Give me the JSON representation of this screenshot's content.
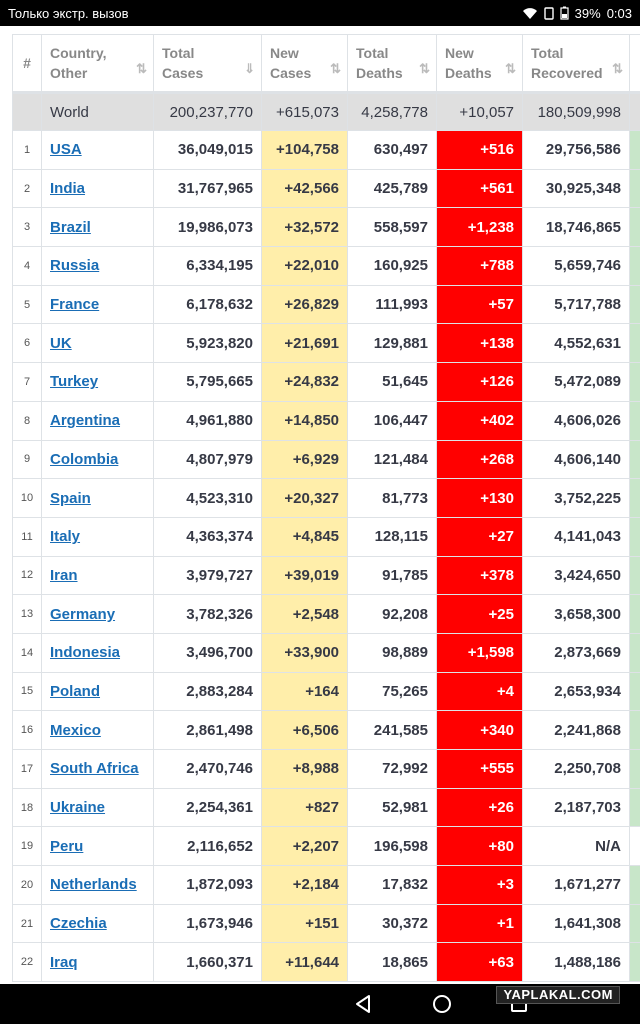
{
  "status_bar": {
    "carrier_text": "Только экстр. вызов",
    "battery": "39%",
    "time": "0:03"
  },
  "table": {
    "headers": {
      "rank": "#",
      "country": "Country,\nOther",
      "total_cases": "Total\nCases",
      "new_cases": "New\nCases",
      "total_deaths": "Total\nDeaths",
      "new_deaths": "New\nDeaths",
      "total_recovered": "Total\nRecovered"
    },
    "world": {
      "country": "World",
      "total_cases": "200,237,770",
      "new_cases": "+615,073",
      "total_deaths": "4,258,778",
      "new_deaths": "+10,057",
      "total_recovered": "180,509,998"
    },
    "rows": [
      {
        "rank": "1",
        "country": "USA",
        "total_cases": "36,049,015",
        "new_cases": "+104,758",
        "total_deaths": "630,497",
        "new_deaths": "+516",
        "total_recovered": "29,756,586"
      },
      {
        "rank": "2",
        "country": "India",
        "total_cases": "31,767,965",
        "new_cases": "+42,566",
        "total_deaths": "425,789",
        "new_deaths": "+561",
        "total_recovered": "30,925,348"
      },
      {
        "rank": "3",
        "country": "Brazil",
        "total_cases": "19,986,073",
        "new_cases": "+32,572",
        "total_deaths": "558,597",
        "new_deaths": "+1,238",
        "total_recovered": "18,746,865"
      },
      {
        "rank": "4",
        "country": "Russia",
        "total_cases": "6,334,195",
        "new_cases": "+22,010",
        "total_deaths": "160,925",
        "new_deaths": "+788",
        "total_recovered": "5,659,746"
      },
      {
        "rank": "5",
        "country": "France",
        "total_cases": "6,178,632",
        "new_cases": "+26,829",
        "total_deaths": "111,993",
        "new_deaths": "+57",
        "total_recovered": "5,717,788"
      },
      {
        "rank": "6",
        "country": "UK",
        "total_cases": "5,923,820",
        "new_cases": "+21,691",
        "total_deaths": "129,881",
        "new_deaths": "+138",
        "total_recovered": "4,552,631"
      },
      {
        "rank": "7",
        "country": "Turkey",
        "total_cases": "5,795,665",
        "new_cases": "+24,832",
        "total_deaths": "51,645",
        "new_deaths": "+126",
        "total_recovered": "5,472,089"
      },
      {
        "rank": "8",
        "country": "Argentina",
        "total_cases": "4,961,880",
        "new_cases": "+14,850",
        "total_deaths": "106,447",
        "new_deaths": "+402",
        "total_recovered": "4,606,026"
      },
      {
        "rank": "9",
        "country": "Colombia",
        "total_cases": "4,807,979",
        "new_cases": "+6,929",
        "total_deaths": "121,484",
        "new_deaths": "+268",
        "total_recovered": "4,606,140"
      },
      {
        "rank": "10",
        "country": "Spain",
        "total_cases": "4,523,310",
        "new_cases": "+20,327",
        "total_deaths": "81,773",
        "new_deaths": "+130",
        "total_recovered": "3,752,225"
      },
      {
        "rank": "11",
        "country": "Italy",
        "total_cases": "4,363,374",
        "new_cases": "+4,845",
        "total_deaths": "128,115",
        "new_deaths": "+27",
        "total_recovered": "4,141,043"
      },
      {
        "rank": "12",
        "country": "Iran",
        "total_cases": "3,979,727",
        "new_cases": "+39,019",
        "total_deaths": "91,785",
        "new_deaths": "+378",
        "total_recovered": "3,424,650"
      },
      {
        "rank": "13",
        "country": "Germany",
        "total_cases": "3,782,326",
        "new_cases": "+2,548",
        "total_deaths": "92,208",
        "new_deaths": "+25",
        "total_recovered": "3,658,300"
      },
      {
        "rank": "14",
        "country": "Indonesia",
        "total_cases": "3,496,700",
        "new_cases": "+33,900",
        "total_deaths": "98,889",
        "new_deaths": "+1,598",
        "total_recovered": "2,873,669"
      },
      {
        "rank": "15",
        "country": "Poland",
        "total_cases": "2,883,284",
        "new_cases": "+164",
        "total_deaths": "75,265",
        "new_deaths": "+4",
        "total_recovered": "2,653,934"
      },
      {
        "rank": "16",
        "country": "Mexico",
        "total_cases": "2,861,498",
        "new_cases": "+6,506",
        "total_deaths": "241,585",
        "new_deaths": "+340",
        "total_recovered": "2,241,868"
      },
      {
        "rank": "17",
        "country": "South Africa",
        "total_cases": "2,470,746",
        "new_cases": "+8,988",
        "total_deaths": "72,992",
        "new_deaths": "+555",
        "total_recovered": "2,250,708"
      },
      {
        "rank": "18",
        "country": "Ukraine",
        "total_cases": "2,254,361",
        "new_cases": "+827",
        "total_deaths": "52,981",
        "new_deaths": "+26",
        "total_recovered": "2,187,703"
      },
      {
        "rank": "19",
        "country": "Peru",
        "total_cases": "2,116,652",
        "new_cases": "+2,207",
        "total_deaths": "196,598",
        "new_deaths": "+80",
        "total_recovered": "N/A"
      },
      {
        "rank": "20",
        "country": "Netherlands",
        "total_cases": "1,872,093",
        "new_cases": "+2,184",
        "total_deaths": "17,832",
        "new_deaths": "+3",
        "total_recovered": "1,671,277"
      },
      {
        "rank": "21",
        "country": "Czechia",
        "total_cases": "1,673,946",
        "new_cases": "+151",
        "total_deaths": "30,372",
        "new_deaths": "+1",
        "total_recovered": "1,641,308"
      },
      {
        "rank": "22",
        "country": "Iraq",
        "total_cases": "1,660,371",
        "new_cases": "+11,644",
        "total_deaths": "18,865",
        "new_deaths": "+63",
        "total_recovered": "1,488,186"
      }
    ]
  },
  "colors": {
    "link": "#1a6db5",
    "new_cases_bg": "#ffeeaa",
    "new_deaths_bg": "#ff0000",
    "world_row_bg": "#dfdfdf",
    "active_column_bg": "#c8e6c9"
  },
  "watermark": "YAPLAKAL.COM"
}
